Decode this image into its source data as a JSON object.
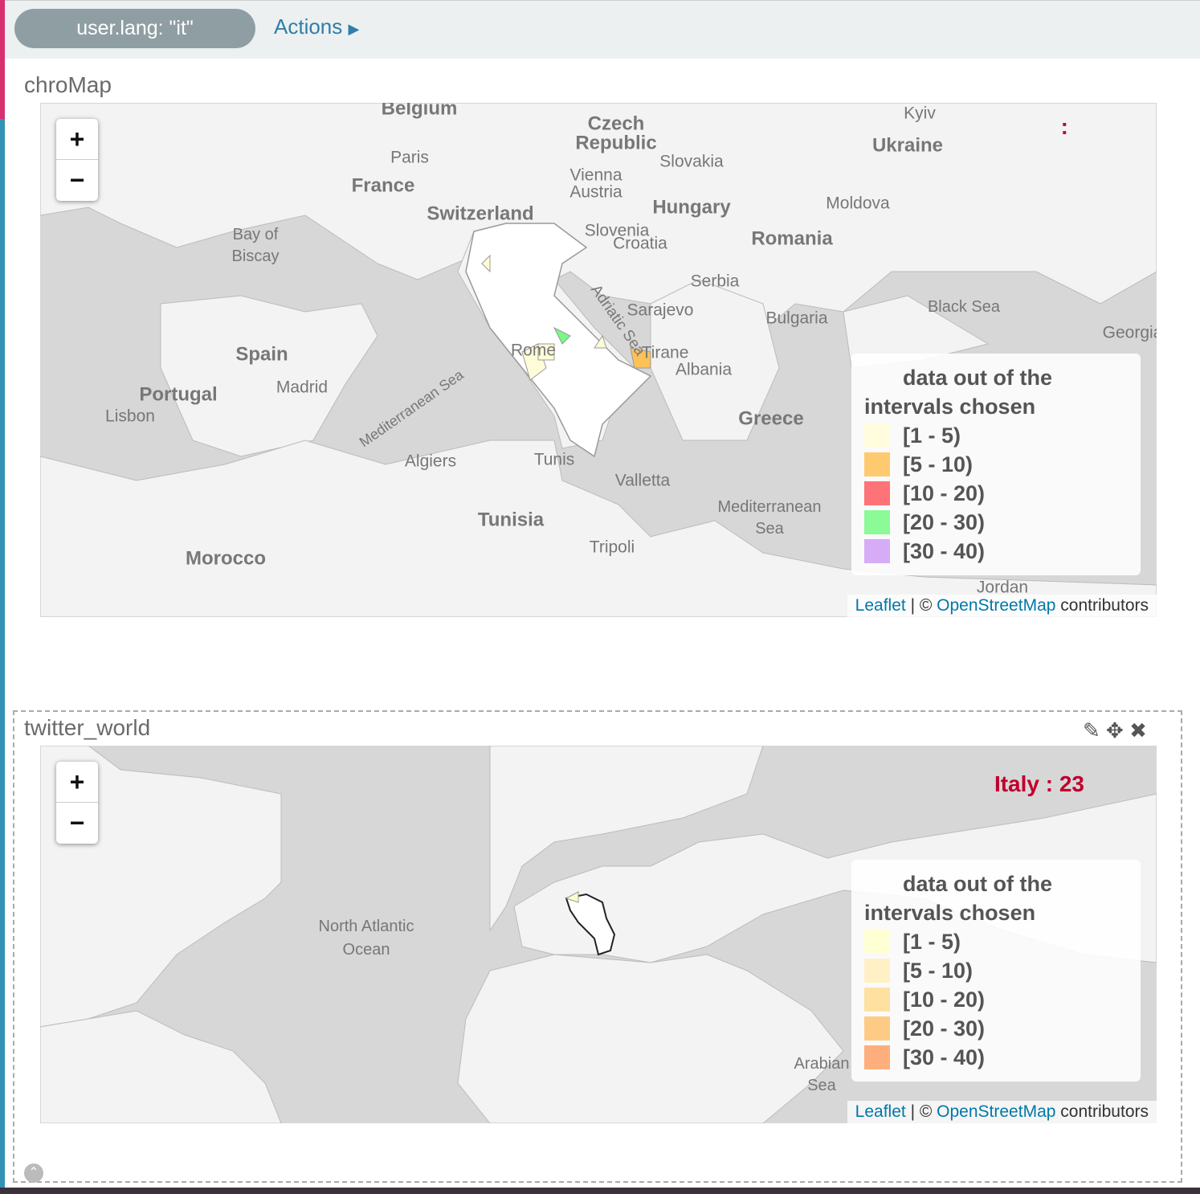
{
  "filter_bar": {
    "filter": "user.lang: \"it\"",
    "actions": "Actions"
  },
  "panels": [
    {
      "title": "chroMap",
      "zoom_in": "+",
      "zoom_out": "−",
      "info": ":",
      "legend": {
        "title": "data out of the intervals chosen",
        "items": [
          {
            "label": "[1 - 5)",
            "color": "#fffdd8"
          },
          {
            "label": "[5 - 10)",
            "color": "#fec157"
          },
          {
            "label": "[10 - 20)",
            "color": "#fe5a5f"
          },
          {
            "label": "[20 - 30)",
            "color": "#78f985"
          },
          {
            "label": "[30 - 40)",
            "color": "#cf9ef6"
          }
        ]
      },
      "attribution": {
        "leaflet": "Leaflet",
        "separator": "| ©",
        "osm": "OpenStreetMap",
        "suffix": "contributors"
      },
      "map_labels": [
        "Belgium",
        "Czech",
        "Republic",
        "Kyiv",
        "Ukraine",
        "Paris",
        "Slovakia",
        "Vienna",
        "Austria",
        "France",
        "Switzerland",
        "Hungary",
        "Moldova",
        "Slovenia",
        "Croatia",
        "Romania",
        "Bay of",
        "Biscay",
        "Serbia",
        "Sarajevo",
        "Black Sea",
        "Georgia",
        "Spain",
        "Bulgaria",
        "Rome",
        "Tirane",
        "Albania",
        "Adriatic Sea",
        "Madrid",
        "Portugal",
        "Lisbon",
        "Greece",
        "Mediterranean Sea",
        "Algiers",
        "Tunis",
        "Valletta",
        "Tunisia",
        "Mediterranean",
        "Sea",
        "Tripoli",
        "Morocco",
        "Jordan"
      ]
    },
    {
      "title": "twitter_world",
      "zoom_in": "+",
      "zoom_out": "−",
      "info": "Italy : 23",
      "legend": {
        "title": "data out of the intervals chosen",
        "items": [
          {
            "label": "[1 - 5)",
            "color": "#ffffcc"
          },
          {
            "label": "[5 - 10)",
            "color": "#ffefbb"
          },
          {
            "label": "[10 - 20)",
            "color": "#fedc90"
          },
          {
            "label": "[20 - 30)",
            "color": "#fec272"
          },
          {
            "label": "[30 - 40)",
            "color": "#fda065"
          }
        ]
      },
      "attribution": {
        "leaflet": "Leaflet",
        "separator": "| ©",
        "osm": "OpenStreetMap",
        "suffix": "contributors"
      },
      "map_labels": [
        "North Atlantic",
        "Ocean",
        "Arabian",
        "Sea"
      ]
    }
  ]
}
